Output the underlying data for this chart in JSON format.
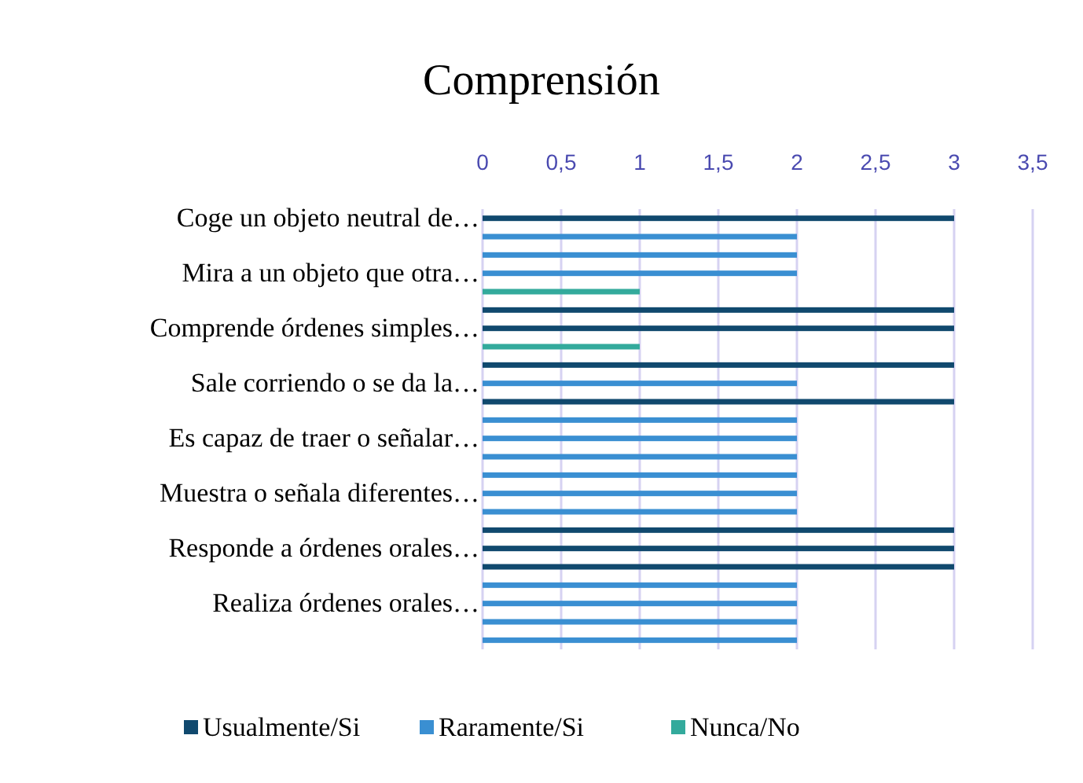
{
  "chart_data": {
    "type": "bar",
    "orientation": "horizontal",
    "title": "Comprensión",
    "categories": [
      "Coge un objeto neutral de…",
      null,
      null,
      "Mira a un objeto que otra…",
      null,
      null,
      "Comprende órdenes simples…",
      null,
      null,
      "Sale corriendo o se da la…",
      null,
      null,
      "Es capaz de traer o señalar…",
      null,
      null,
      "Muestra o señala diferentes…",
      null,
      null,
      "Responde a órdenes orales…",
      null,
      null,
      "Realiza órdenes orales…",
      null,
      null
    ],
    "series": [
      {
        "name": "Usualmente/Si",
        "color": "#10496e",
        "values": [
          3,
          null,
          null,
          null,
          null,
          3,
          3,
          null,
          3,
          null,
          3,
          null,
          null,
          null,
          null,
          null,
          null,
          3,
          3,
          3,
          null,
          null,
          null,
          null
        ]
      },
      {
        "name": "Raramente/Si",
        "color": "#3a8fd2",
        "values": [
          null,
          2,
          2,
          2,
          null,
          null,
          null,
          null,
          null,
          2,
          null,
          2,
          2,
          2,
          2,
          2,
          2,
          null,
          null,
          null,
          2,
          2,
          2,
          2
        ]
      },
      {
        "name": "Nunca/No",
        "color": "#33aa9c",
        "values": [
          null,
          null,
          null,
          null,
          1,
          null,
          null,
          1,
          null,
          null,
          null,
          null,
          null,
          null,
          null,
          null,
          null,
          null,
          null,
          null,
          null,
          null,
          null,
          null
        ]
      }
    ],
    "xlim": [
      0,
      3.5
    ],
    "xticks": [
      0,
      {
        "value": 0.5,
        "label": "0,5"
      },
      1,
      {
        "value": 1.5,
        "label": "1,5"
      },
      2,
      {
        "value": 2.5,
        "label": "2,5"
      },
      3,
      {
        "value": 3.5,
        "label": "3,5"
      }
    ],
    "grid": "x",
    "legend": "bottom"
  }
}
